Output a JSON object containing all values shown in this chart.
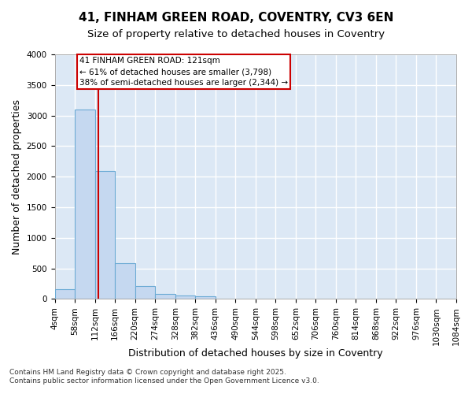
{
  "title_line1": "41, FINHAM GREEN ROAD, COVENTRY, CV3 6EN",
  "title_line2": "Size of property relative to detached houses in Coventry",
  "xlabel": "Distribution of detached houses by size in Coventry",
  "ylabel": "Number of detached properties",
  "footnote": "Contains HM Land Registry data © Crown copyright and database right 2025.\nContains public sector information licensed under the Open Government Licence v3.0.",
  "bin_edges": [
    4,
    58,
    112,
    166,
    220,
    274,
    328,
    382,
    436,
    490,
    544,
    598,
    652,
    706,
    760,
    814,
    868,
    922,
    976,
    1030,
    1084
  ],
  "bar_heights": [
    160,
    3100,
    2090,
    580,
    210,
    90,
    55,
    50,
    0,
    0,
    0,
    0,
    0,
    0,
    0,
    0,
    0,
    0,
    0,
    0
  ],
  "bar_color": "#c5d8f0",
  "bar_edge_color": "#6aaad4",
  "property_size": 121,
  "vline_color": "#cc0000",
  "annotation_text": "41 FINHAM GREEN ROAD: 121sqm\n← 61% of detached houses are smaller (3,798)\n38% of semi-detached houses are larger (2,344) →",
  "annotation_box_color": "#cc0000",
  "annotation_text_color": "#000000",
  "annotation_bg_color": "#ffffff",
  "ylim": [
    0,
    4000
  ],
  "yticks": [
    0,
    500,
    1000,
    1500,
    2000,
    2500,
    3000,
    3500,
    4000
  ],
  "figure_bg_color": "#ffffff",
  "plot_bg_color": "#dce8f5",
  "grid_color": "#ffffff",
  "tick_label_fontsize": 7.5,
  "axis_label_fontsize": 9,
  "title_fontsize1": 11,
  "title_fontsize2": 9.5,
  "footnote_fontsize": 6.5
}
